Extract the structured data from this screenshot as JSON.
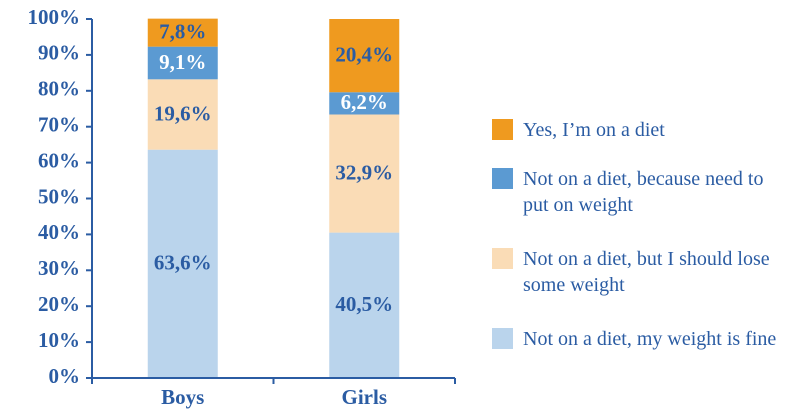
{
  "chart_data": {
    "type": "stacked_bar",
    "categories": [
      "Boys",
      "Girls"
    ],
    "series": [
      {
        "name": "Not on a diet, my weight is fine",
        "color": "#bad4ec",
        "values": [
          63.6,
          40.5
        ],
        "value_labels": [
          "63,6%",
          "40,5%"
        ]
      },
      {
        "name": "Not on a diet, but I should lose some weight",
        "color": "#fadcb6",
        "values": [
          19.6,
          32.9
        ],
        "value_labels": [
          "19,6%",
          "32,9%"
        ]
      },
      {
        "name": "Not on a diet, because need to put on weight",
        "color": "#5b9ad2",
        "values": [
          9.1,
          6.2
        ],
        "value_labels": [
          "9,1%",
          "6,2%"
        ]
      },
      {
        "name": "Yes, I’m on a diet",
        "color": "#ef9a1f",
        "values": [
          7.8,
          20.4
        ],
        "value_labels": [
          "7,8%",
          "20,4%"
        ]
      }
    ],
    "ylim": [
      0,
      100
    ],
    "yticks": [
      {
        "value": 0,
        "label": "0%"
      },
      {
        "value": 10,
        "label": "10%"
      },
      {
        "value": 20,
        "label": "20%"
      },
      {
        "value": 30,
        "label": "30%"
      },
      {
        "value": 40,
        "label": "40%"
      },
      {
        "value": 50,
        "label": "50%"
      },
      {
        "value": 60,
        "label": "60%"
      },
      {
        "value": 70,
        "label": "70%"
      },
      {
        "value": 80,
        "label": "80%"
      },
      {
        "value": 90,
        "label": "90%"
      },
      {
        "value": 100,
        "label": "100%"
      }
    ],
    "grid": false,
    "legend": "right"
  }
}
